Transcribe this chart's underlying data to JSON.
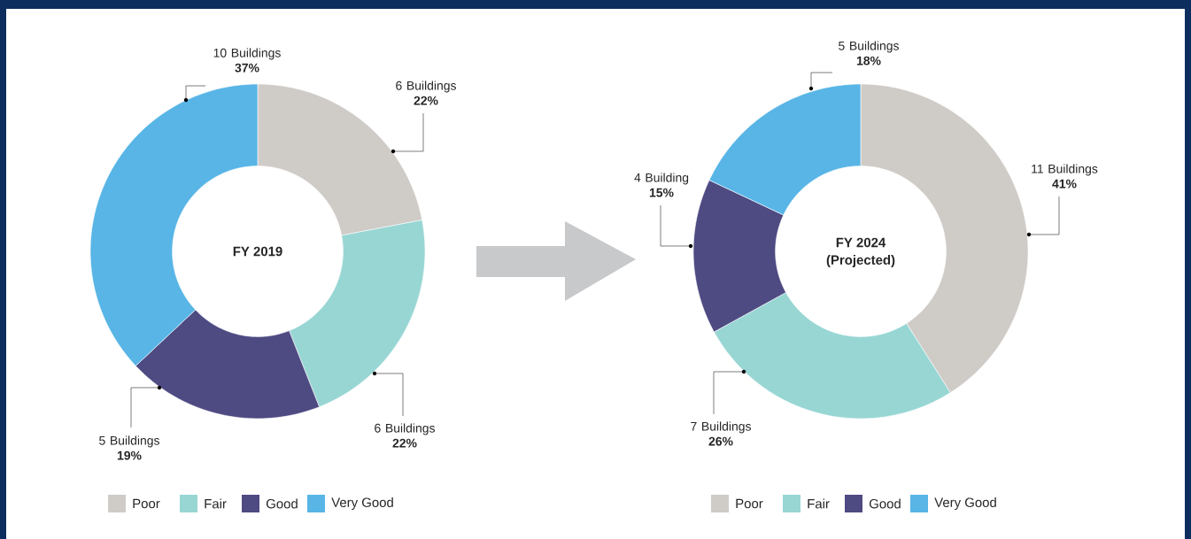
{
  "chart_data": [
    {
      "type": "donut",
      "title": "FY 2019",
      "categories": [
        "Poor",
        "Fair",
        "Good",
        "Very Good"
      ],
      "values": [
        22,
        22,
        19,
        37
      ],
      "colors": [
        "#cfcbc7",
        "#98d6d4",
        "#4e4a82",
        "#58b5e6"
      ],
      "value_labels": [
        "6 Buildings **22%**",
        "6 Buildings **22%**",
        "5 Buildings **19%**",
        "10 Buildings **37%**"
      ],
      "legend": "bottom"
    },
    {
      "type": "donut",
      "title": "FY 2024",
      "subtitle": "(Projected)",
      "categories": [
        "Poor",
        "Fair",
        "Good",
        "Very Good"
      ],
      "values": [
        41,
        26,
        15,
        18
      ],
      "colors": [
        "#cfcbc7",
        "#98d6d4",
        "#4e4a82",
        "#58b5e6"
      ],
      "value_labels": [
        "11 Buildings **41%**",
        "7 Buildings **26%**",
        "4 Building **15%**",
        "5 Buildings **18%**"
      ],
      "legend": "bottom"
    }
  ]
}
